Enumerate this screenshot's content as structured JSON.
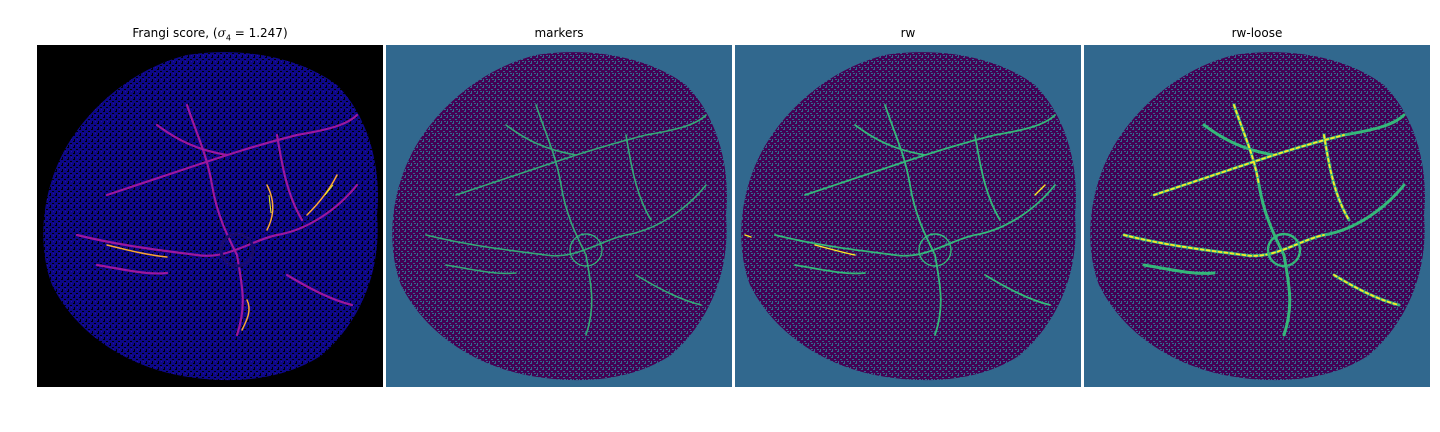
{
  "panels": [
    {
      "title_prefix": "Frangi score, (",
      "title_symbol": "σ",
      "title_sub": "4",
      "title_suffix": " = 1.247)",
      "colormap": "inferno",
      "background": "#000000"
    },
    {
      "title": "markers",
      "colormap": "viridis",
      "background": "#31688e"
    },
    {
      "title": "rw",
      "colormap": "viridis",
      "background": "#31688e"
    },
    {
      "title": "rw-loose",
      "colormap": "viridis",
      "background": "#31688e"
    }
  ],
  "colors": {
    "inferno_dark": "#0d0887",
    "inferno_mid": "#9c179e",
    "inferno_hot": "#fca636",
    "inferno_peak": "#f0f921",
    "viridis_dark": "#440154",
    "viridis_teal": "#31688e",
    "viridis_green": "#35b779",
    "viridis_yellow": "#fde725"
  }
}
